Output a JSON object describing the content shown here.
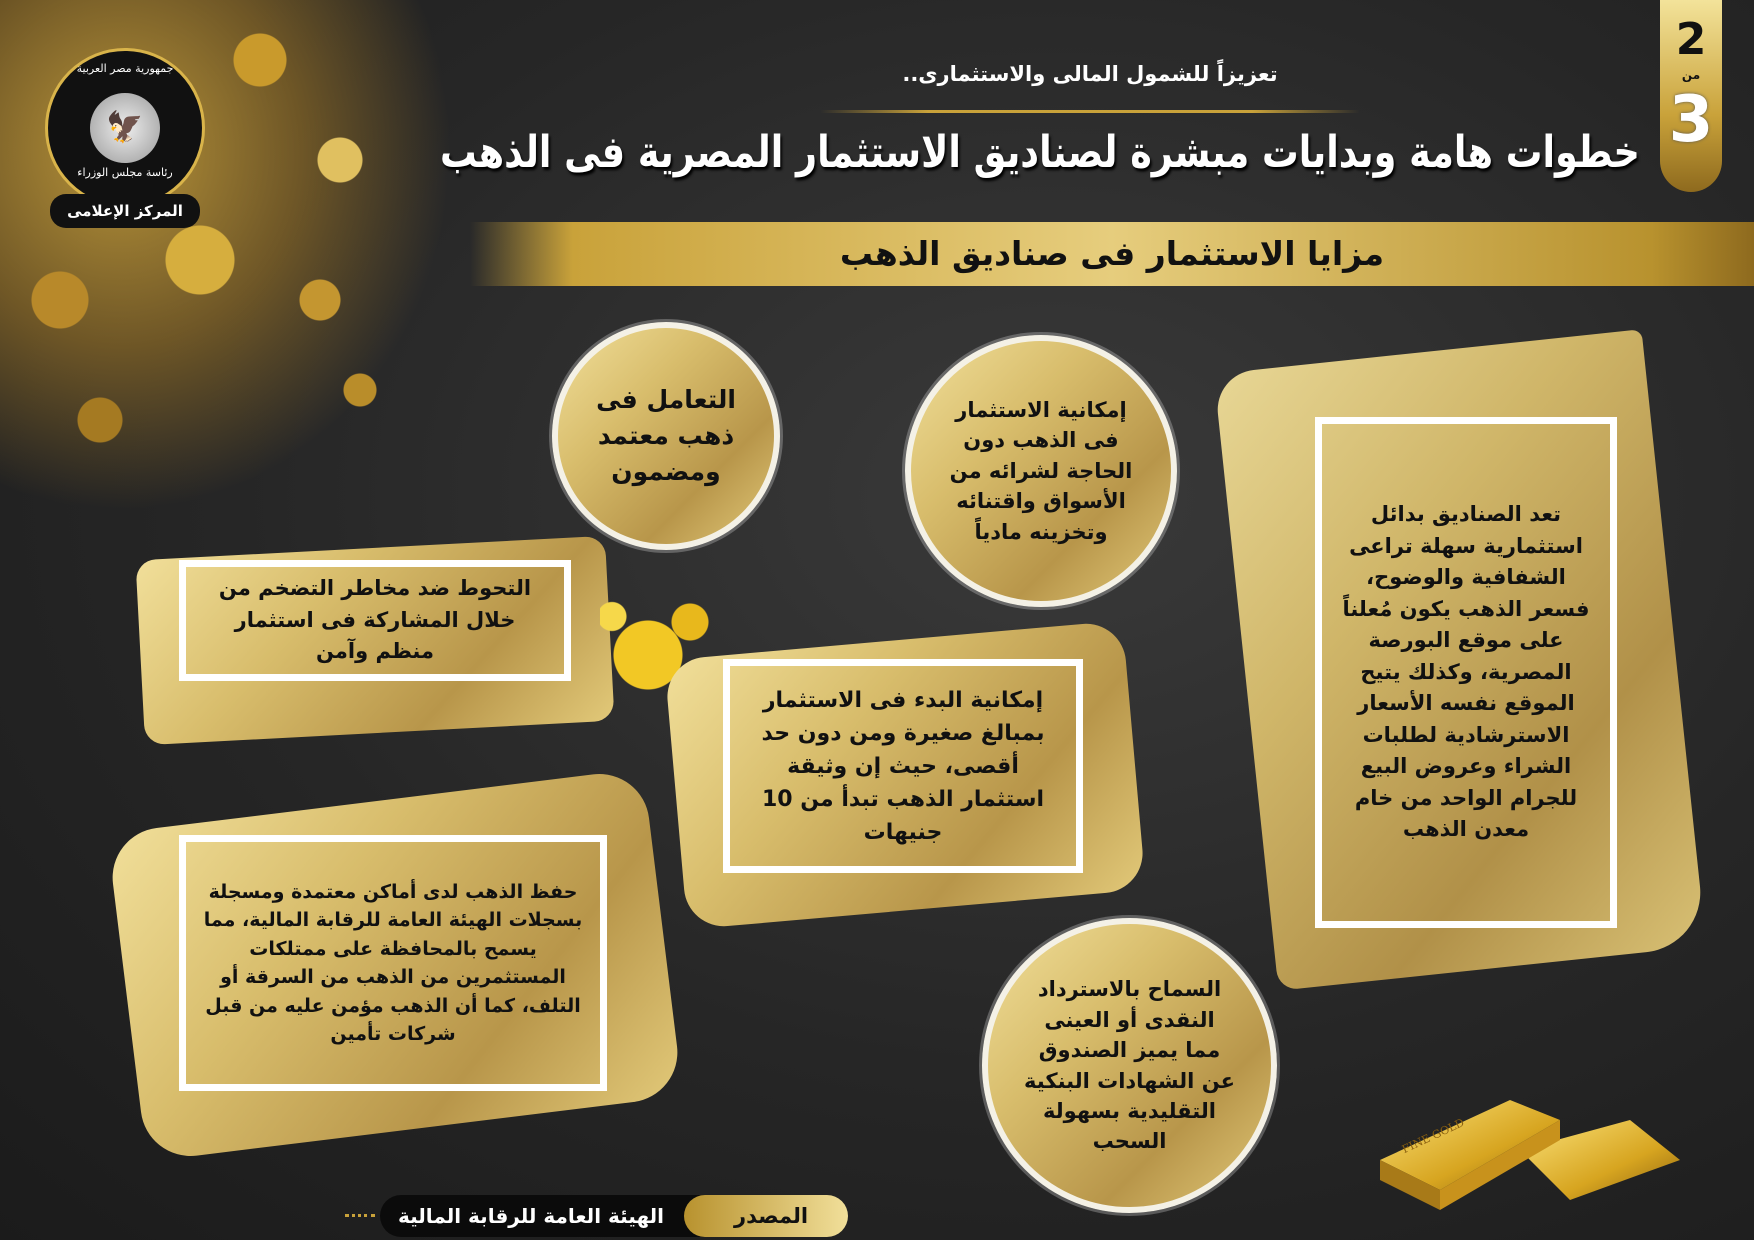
{
  "logo": {
    "top_text": "جمهورية مصر العربية",
    "middle_text": "رئاسة مجلس الوزراء",
    "ribbon_text": "المركز الإعلامى"
  },
  "page_indicator": {
    "current": "2",
    "of_label": "من",
    "total": "3"
  },
  "header": {
    "subtitle": "تعزيزاً للشمول المالى والاستثمارى..",
    "title": "خطوات هامة وبدايات مبشرة لصناديق الاستثمار المصرية فى الذهب",
    "section_heading": "مزايا الاستثمار فى صناديق الذهب"
  },
  "benefits": [
    {
      "text": "التعامل فى ذهب معتمد ومضمون"
    },
    {
      "text": "إمكانية الاستثمار فى الذهب دون الحاجة لشرائه من الأسواق واقتنائه وتخزينه مادياً"
    },
    {
      "text": "تعد الصناديق بدائل استثمارية سهلة تراعى الشفافية والوضوح، فسعر الذهب يكون مُعلناً على موقع البورصة المصرية، وكذلك يتيح الموقع نفسه الأسعار الاسترشادية لطلبات الشراء وعروض البيع للجرام الواحد من خام معدن الذهب"
    },
    {
      "text": "التحوط ضد مخاطر التضخم من خلال المشاركة فى استثمار منظم وآمن"
    },
    {
      "text": "إمكانية البدء فى الاستثمار بمبالغ صغيرة ومن دون حد أقصى، حيث إن وثيقة استثمار الذهب تبدأ من 10 جنيهات"
    },
    {
      "text": "حفظ الذهب لدى أماكن معتمدة ومسجلة بسجلات الهيئة العامة للرقابة المالية، مما يسمح بالمحافظة على ممتلكات المستثمرين من الذهب من السرقة أو التلف، كما أن الذهب مؤمن عليه من قبل شركات تأمين"
    },
    {
      "text": "السماح بالاسترداد النقدى أو العينى مما يميز الصندوق عن الشهادات البنكية التقليدية بسهولة السحب"
    }
  ],
  "decor": {
    "gold_bar_engraving": "FINE GOLD"
  },
  "footer": {
    "source_label": "المصدر",
    "source_value": "الهيئة العامة للرقابة المالية"
  },
  "colors": {
    "background": "#262626",
    "gold_light": "#f1df9a",
    "gold_dark": "#b8922e",
    "text": "#111111",
    "title": "#ffffff"
  }
}
